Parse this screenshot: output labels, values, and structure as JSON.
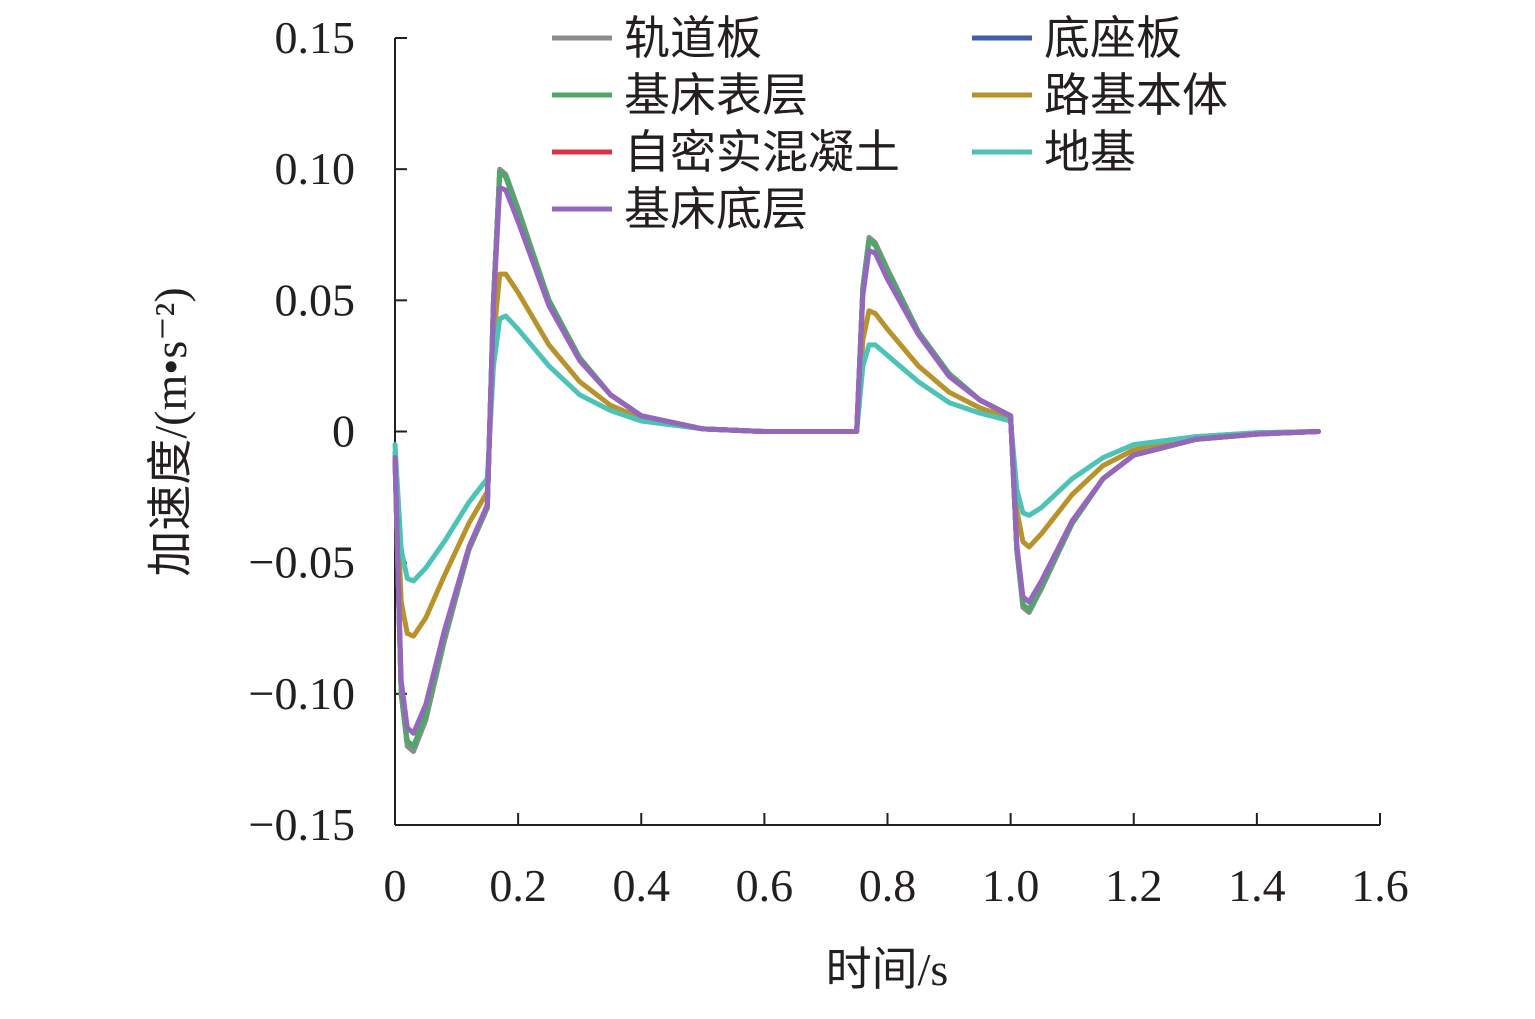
{
  "chart_data": {
    "type": "line",
    "xlabel": "时间/s",
    "ylabel": "加速度/(m•s⁻²)",
    "xlim": [
      0,
      1.6
    ],
    "ylim": [
      -0.15,
      0.15
    ],
    "x_ticks": [
      0,
      0.2,
      0.4,
      0.6,
      0.8,
      1.0,
      1.2,
      1.4,
      1.6
    ],
    "x_tick_labels": [
      "0",
      "0.2",
      "0.4",
      "0.6",
      "0.8",
      "1.0",
      "1.2",
      "1.4",
      "1.6"
    ],
    "y_ticks": [
      0.15,
      0.1,
      0.05,
      0,
      -0.05,
      -0.1,
      -0.15
    ],
    "y_tick_labels": [
      "0.15",
      "0.10",
      "0.05",
      "0",
      "−0.05",
      "−0.10",
      "−0.15"
    ],
    "grid": false,
    "legend_position": "top",
    "series": [
      {
        "name": "轨道板",
        "color": "#8c8c8c",
        "x": [
          0,
          0.01,
          0.02,
          0.03,
          0.05,
          0.08,
          0.12,
          0.15,
          0.16,
          0.17,
          0.18,
          0.2,
          0.25,
          0.3,
          0.35,
          0.4,
          0.5,
          0.6,
          0.7,
          0.75,
          0.76,
          0.77,
          0.78,
          0.8,
          0.85,
          0.9,
          0.95,
          1.0,
          1.01,
          1.02,
          1.03,
          1.05,
          1.1,
          1.15,
          1.2,
          1.3,
          1.4,
          1.5
        ],
        "y": [
          -0.01,
          -0.1,
          -0.12,
          -0.122,
          -0.11,
          -0.08,
          -0.045,
          -0.029,
          0.05,
          0.1,
          0.098,
          0.085,
          0.05,
          0.028,
          0.014,
          0.006,
          0.001,
          0.0,
          0.0,
          0.0,
          0.055,
          0.074,
          0.072,
          0.062,
          0.038,
          0.022,
          0.012,
          0.006,
          -0.045,
          -0.067,
          -0.069,
          -0.06,
          -0.035,
          -0.018,
          -0.009,
          -0.003,
          -0.001,
          0.0
        ]
      },
      {
        "name": "底座板",
        "color": "#3f5fa8",
        "x": [
          0,
          0.01,
          0.02,
          0.03,
          0.05,
          0.08,
          0.12,
          0.15,
          0.16,
          0.17,
          0.18,
          0.2,
          0.25,
          0.3,
          0.35,
          0.4,
          0.5,
          0.6,
          0.7,
          0.75,
          0.76,
          0.77,
          0.78,
          0.8,
          0.85,
          0.9,
          0.95,
          1.0,
          1.01,
          1.02,
          1.03,
          1.05,
          1.1,
          1.15,
          1.2,
          1.3,
          1.4,
          1.5
        ],
        "y": [
          -0.01,
          -0.1,
          -0.119,
          -0.121,
          -0.109,
          -0.079,
          -0.045,
          -0.029,
          0.05,
          0.099,
          0.097,
          0.084,
          0.05,
          0.028,
          0.014,
          0.006,
          0.001,
          0.0,
          0.0,
          0.0,
          0.055,
          0.073,
          0.071,
          0.061,
          0.038,
          0.022,
          0.012,
          0.006,
          -0.045,
          -0.066,
          -0.068,
          -0.059,
          -0.035,
          -0.018,
          -0.009,
          -0.003,
          -0.001,
          0.0
        ]
      },
      {
        "name": "基床表层",
        "color": "#4fa867",
        "x": [
          0,
          0.01,
          0.02,
          0.03,
          0.05,
          0.08,
          0.12,
          0.15,
          0.16,
          0.17,
          0.18,
          0.2,
          0.25,
          0.3,
          0.35,
          0.4,
          0.5,
          0.6,
          0.7,
          0.75,
          0.76,
          0.77,
          0.78,
          0.8,
          0.85,
          0.9,
          0.95,
          1.0,
          1.01,
          1.02,
          1.03,
          1.05,
          1.1,
          1.15,
          1.2,
          1.3,
          1.4,
          1.5
        ],
        "y": [
          -0.01,
          -0.1,
          -0.118,
          -0.12,
          -0.108,
          -0.078,
          -0.045,
          -0.029,
          0.05,
          0.099,
          0.097,
          0.084,
          0.05,
          0.028,
          0.014,
          0.006,
          0.001,
          0.0,
          0.0,
          0.0,
          0.055,
          0.073,
          0.071,
          0.061,
          0.038,
          0.022,
          0.012,
          0.006,
          -0.045,
          -0.066,
          -0.068,
          -0.059,
          -0.035,
          -0.018,
          -0.009,
          -0.003,
          -0.001,
          0.0
        ]
      },
      {
        "name": "路基本体",
        "color": "#b8922a",
        "x": [
          0,
          0.01,
          0.02,
          0.03,
          0.05,
          0.08,
          0.12,
          0.15,
          0.16,
          0.17,
          0.18,
          0.2,
          0.25,
          0.3,
          0.35,
          0.4,
          0.5,
          0.6,
          0.7,
          0.75,
          0.76,
          0.77,
          0.78,
          0.8,
          0.85,
          0.9,
          0.95,
          1.0,
          1.01,
          1.02,
          1.03,
          1.05,
          1.1,
          1.15,
          1.2,
          1.3,
          1.4,
          1.5
        ],
        "y": [
          -0.008,
          -0.065,
          -0.077,
          -0.078,
          -0.071,
          -0.055,
          -0.035,
          -0.023,
          0.035,
          0.06,
          0.06,
          0.053,
          0.033,
          0.019,
          0.01,
          0.005,
          0.001,
          0.0,
          0.0,
          0.0,
          0.035,
          0.046,
          0.045,
          0.039,
          0.025,
          0.015,
          0.009,
          0.005,
          -0.03,
          -0.042,
          -0.044,
          -0.039,
          -0.024,
          -0.013,
          -0.007,
          -0.002,
          -0.0005,
          0.0
        ]
      },
      {
        "name": "自密实混凝土",
        "color": "#d9334a",
        "x": [
          0,
          0.01,
          0.02,
          0.03,
          0.05,
          0.08,
          0.12,
          0.15,
          0.16,
          0.17,
          0.18,
          0.2,
          0.25,
          0.3,
          0.35,
          0.4,
          0.5,
          0.6,
          0.7,
          0.75,
          0.76,
          0.77,
          0.78,
          0.8,
          0.85,
          0.9,
          0.95,
          1.0,
          1.01,
          1.02,
          1.03,
          1.05,
          1.1,
          1.15,
          1.2,
          1.3,
          1.4,
          1.5
        ],
        "y": [
          -0.01,
          -0.1,
          -0.119,
          -0.121,
          -0.109,
          -0.079,
          -0.045,
          -0.029,
          0.05,
          0.099,
          0.097,
          0.084,
          0.05,
          0.028,
          0.014,
          0.006,
          0.001,
          0.0,
          0.0,
          0.0,
          0.055,
          0.073,
          0.071,
          0.061,
          0.038,
          0.022,
          0.012,
          0.006,
          -0.045,
          -0.066,
          -0.068,
          -0.059,
          -0.035,
          -0.018,
          -0.009,
          -0.003,
          -0.001,
          0.0
        ]
      },
      {
        "name": "地基",
        "color": "#4dc3b8",
        "x": [
          0,
          0.01,
          0.02,
          0.03,
          0.05,
          0.08,
          0.12,
          0.15,
          0.16,
          0.17,
          0.18,
          0.2,
          0.25,
          0.3,
          0.35,
          0.4,
          0.5,
          0.6,
          0.7,
          0.75,
          0.76,
          0.77,
          0.78,
          0.8,
          0.85,
          0.9,
          0.95,
          1.0,
          1.01,
          1.02,
          1.03,
          1.05,
          1.1,
          1.15,
          1.2,
          1.3,
          1.4,
          1.5
        ],
        "y": [
          -0.005,
          -0.045,
          -0.056,
          -0.057,
          -0.052,
          -0.042,
          -0.027,
          -0.018,
          0.025,
          0.043,
          0.044,
          0.039,
          0.025,
          0.014,
          0.008,
          0.004,
          0.001,
          0.0,
          0.0,
          0.0,
          0.025,
          0.033,
          0.033,
          0.029,
          0.019,
          0.011,
          0.007,
          0.004,
          -0.022,
          -0.031,
          -0.032,
          -0.029,
          -0.018,
          -0.01,
          -0.005,
          -0.002,
          -0.0005,
          0.0
        ]
      },
      {
        "name": "基床底层",
        "color": "#9467bd",
        "x": [
          0,
          0.01,
          0.02,
          0.03,
          0.05,
          0.08,
          0.12,
          0.15,
          0.16,
          0.17,
          0.18,
          0.2,
          0.25,
          0.3,
          0.35,
          0.4,
          0.5,
          0.6,
          0.7,
          0.75,
          0.76,
          0.77,
          0.78,
          0.8,
          0.85,
          0.9,
          0.95,
          1.0,
          1.01,
          1.02,
          1.03,
          1.05,
          1.1,
          1.15,
          1.2,
          1.3,
          1.4,
          1.5
        ],
        "y": [
          -0.01,
          -0.095,
          -0.113,
          -0.115,
          -0.104,
          -0.076,
          -0.044,
          -0.028,
          0.048,
          0.093,
          0.092,
          0.08,
          0.048,
          0.027,
          0.014,
          0.006,
          0.001,
          0.0,
          0.0,
          0.0,
          0.052,
          0.069,
          0.068,
          0.058,
          0.037,
          0.021,
          0.012,
          0.006,
          -0.043,
          -0.063,
          -0.065,
          -0.057,
          -0.034,
          -0.018,
          -0.009,
          -0.003,
          -0.001,
          0.0
        ]
      }
    ],
    "legend_order": [
      "轨道板",
      "底座板",
      "基床表层",
      "路基本体",
      "自密实混凝土",
      "地基",
      "基床底层"
    ]
  }
}
